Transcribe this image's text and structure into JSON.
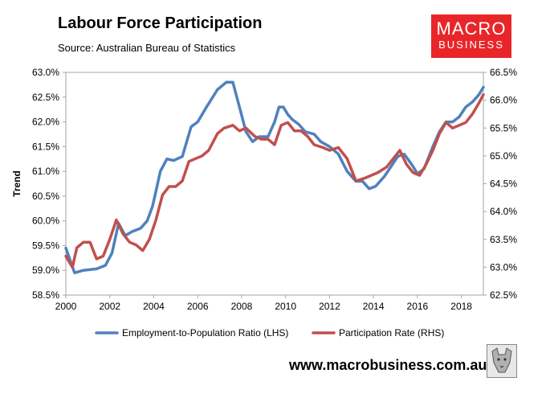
{
  "header": {
    "title": "Labour Force Participation",
    "source": "Source: Australian Bureau of Statistics"
  },
  "logo": {
    "line1": "MACRO",
    "line2": "BUSINESS"
  },
  "footer": {
    "website": "www.macrobusiness.com.au"
  },
  "chart_data": {
    "type": "line",
    "title": "Labour Force Participation",
    "subtitle": "Source: Australian Bureau of Statistics",
    "ylabel": "Trend",
    "xlim": [
      2000,
      2019
    ],
    "ylim_left": [
      58.5,
      63.0
    ],
    "ylim_right": [
      62.5,
      66.5
    ],
    "x_ticks": [
      "2000",
      "2002",
      "2004",
      "2006",
      "2008",
      "2010",
      "2012",
      "2014",
      "2016",
      "2018"
    ],
    "y_left_ticks": [
      "58.5%",
      "59.0%",
      "59.5%",
      "60.0%",
      "60.5%",
      "61.0%",
      "61.5%",
      "62.0%",
      "62.5%",
      "63.0%"
    ],
    "y_right_ticks": [
      "62.5%",
      "63.0%",
      "63.5%",
      "64.0%",
      "64.5%",
      "65.0%",
      "65.5%",
      "66.0%",
      "66.5%"
    ],
    "grid": false,
    "legend_position": "bottom",
    "series": [
      {
        "name": "Employment-to-Population Ratio (LHS)",
        "axis": "left",
        "color": "#4f81bd",
        "x": [
          2000,
          2000.4,
          2000.8,
          2001.4,
          2001.8,
          2002.1,
          2002.4,
          2002.7,
          2003.0,
          2003.4,
          2003.7,
          2003.95,
          2004.3,
          2004.6,
          2004.9,
          2005.3,
          2005.7,
          2006.0,
          2006.4,
          2006.9,
          2007.3,
          2007.6,
          2007.9,
          2008.2,
          2008.5,
          2008.8,
          2009.2,
          2009.5,
          2009.7,
          2009.9,
          2010.1,
          2010.3,
          2010.6,
          2010.9,
          2011.3,
          2011.6,
          2012.0,
          2012.4,
          2012.8,
          2013.2,
          2013.5,
          2013.8,
          2014.1,
          2014.5,
          2014.8,
          2015.1,
          2015.4,
          2015.8,
          2016.0,
          2016.3,
          2016.7,
          2017.0,
          2017.3,
          2017.6,
          2017.9,
          2018.2,
          2018.5,
          2018.8,
          2019.0
        ],
        "values": [
          59.45,
          58.95,
          59.0,
          59.03,
          59.1,
          59.35,
          59.95,
          59.7,
          59.78,
          59.85,
          60.0,
          60.3,
          61.0,
          61.25,
          61.22,
          61.3,
          61.9,
          62.0,
          62.3,
          62.65,
          62.8,
          62.8,
          62.3,
          61.8,
          61.6,
          61.7,
          61.7,
          62.0,
          62.3,
          62.3,
          62.15,
          62.05,
          61.95,
          61.8,
          61.75,
          61.6,
          61.5,
          61.35,
          61.0,
          60.8,
          60.8,
          60.65,
          60.7,
          60.9,
          61.1,
          61.3,
          61.35,
          61.1,
          60.95,
          61.05,
          61.5,
          61.8,
          62.0,
          62.0,
          62.1,
          62.3,
          62.4,
          62.55,
          62.7
        ]
      },
      {
        "name": "Participation Rate (RHS)",
        "axis": "right",
        "color": "#c0504d",
        "x": [
          2000,
          2000.3,
          2000.5,
          2000.8,
          2001.1,
          2001.4,
          2001.7,
          2002.0,
          2002.3,
          2002.6,
          2002.9,
          2003.2,
          2003.5,
          2003.8,
          2004.1,
          2004.4,
          2004.7,
          2005.0,
          2005.3,
          2005.6,
          2005.9,
          2006.2,
          2006.5,
          2006.9,
          2007.2,
          2007.6,
          2007.9,
          2008.2,
          2008.6,
          2008.9,
          2009.2,
          2009.5,
          2009.8,
          2010.1,
          2010.4,
          2010.7,
          2011.0,
          2011.3,
          2011.7,
          2012.0,
          2012.4,
          2012.8,
          2013.2,
          2013.6,
          2013.9,
          2014.2,
          2014.6,
          2014.9,
          2015.2,
          2015.5,
          2015.8,
          2016.1,
          2016.4,
          2016.7,
          2017.0,
          2017.3,
          2017.6,
          2017.9,
          2018.2,
          2018.5,
          2018.8,
          2019.0
        ],
        "values": [
          63.2,
          63.0,
          63.35,
          63.45,
          63.45,
          63.15,
          63.2,
          63.5,
          63.85,
          63.6,
          63.45,
          63.4,
          63.3,
          63.5,
          63.85,
          64.3,
          64.45,
          64.45,
          64.55,
          64.9,
          64.95,
          65.0,
          65.1,
          65.4,
          65.5,
          65.55,
          65.45,
          65.5,
          65.35,
          65.3,
          65.3,
          65.2,
          65.55,
          65.6,
          65.45,
          65.45,
          65.35,
          65.2,
          65.15,
          65.1,
          65.15,
          64.95,
          64.55,
          64.6,
          64.65,
          64.7,
          64.8,
          64.95,
          65.1,
          64.85,
          64.7,
          64.65,
          64.85,
          65.1,
          65.4,
          65.6,
          65.5,
          65.55,
          65.6,
          65.75,
          65.95,
          66.1
        ]
      }
    ]
  }
}
